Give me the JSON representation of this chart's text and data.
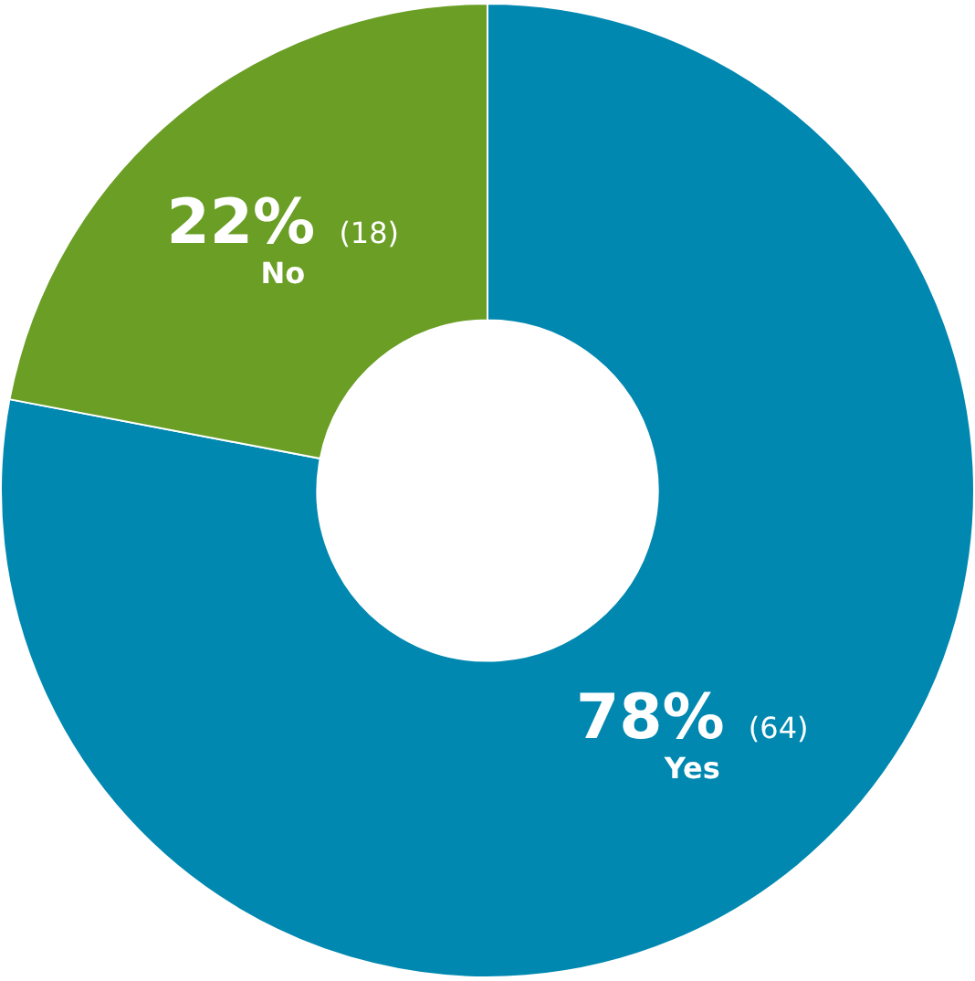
{
  "chart_data": {
    "type": "donut",
    "categories": [
      "Yes",
      "No"
    ],
    "values": [
      78,
      22
    ],
    "value_labels": [
      "78% (64)",
      "22% (18)"
    ],
    "colors": [
      "#0088b0",
      "#6a9e25"
    ],
    "legend": false
  }
}
